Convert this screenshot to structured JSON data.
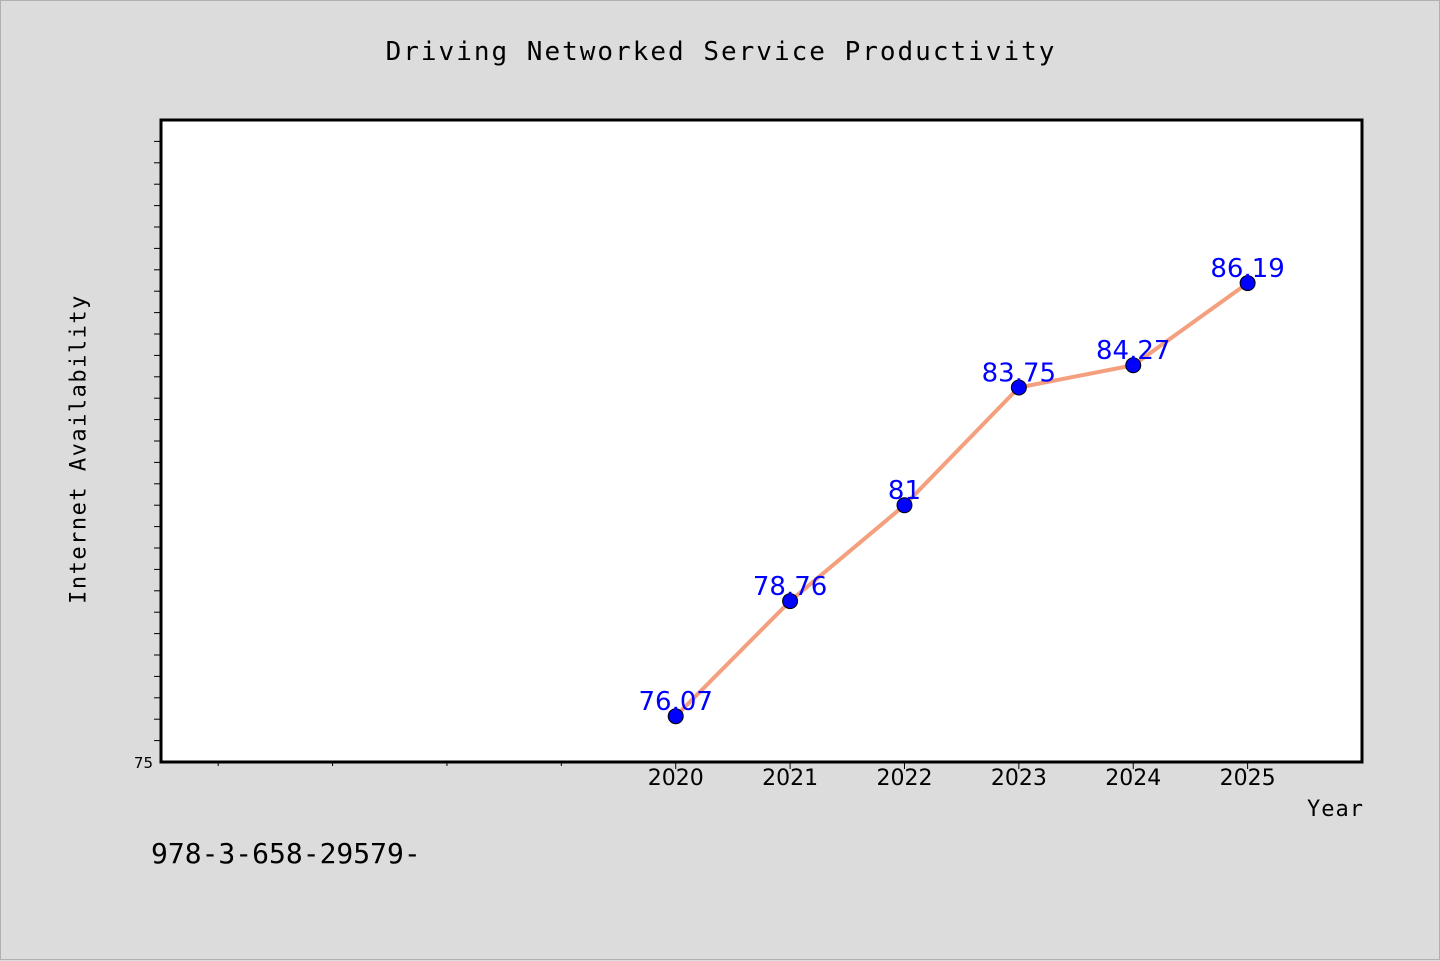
{
  "chart_data": {
    "type": "line",
    "title": "Driving Networked Service Productivity",
    "xlabel": "Year",
    "ylabel": "Internet Availability",
    "x": [
      2020,
      2021,
      2022,
      2023,
      2024,
      2025
    ],
    "x_tick_labels": [
      "2020",
      "2021",
      "2022",
      "2023",
      "2024",
      "2025"
    ],
    "series": [
      {
        "values": [
          76.07,
          78.76,
          81,
          83.75,
          84.27,
          86.19
        ],
        "data_labels": [
          "76.07",
          "78.76",
          "81",
          "83.75",
          "84.27",
          "86.19"
        ]
      }
    ],
    "xlim": [
      2015.5,
      2026.0
    ],
    "ylim": [
      75,
      90
    ],
    "y_tick_labels": [
      "75"
    ],
    "grid": false,
    "legend": "none"
  },
  "footnote": "978-3-658-29579-",
  "colors": {
    "background": "#dcdcdc",
    "plot_background": "#ffffff",
    "line": "#f4a07e",
    "marker": "#0000ff",
    "data_label": "#0000ff"
  }
}
